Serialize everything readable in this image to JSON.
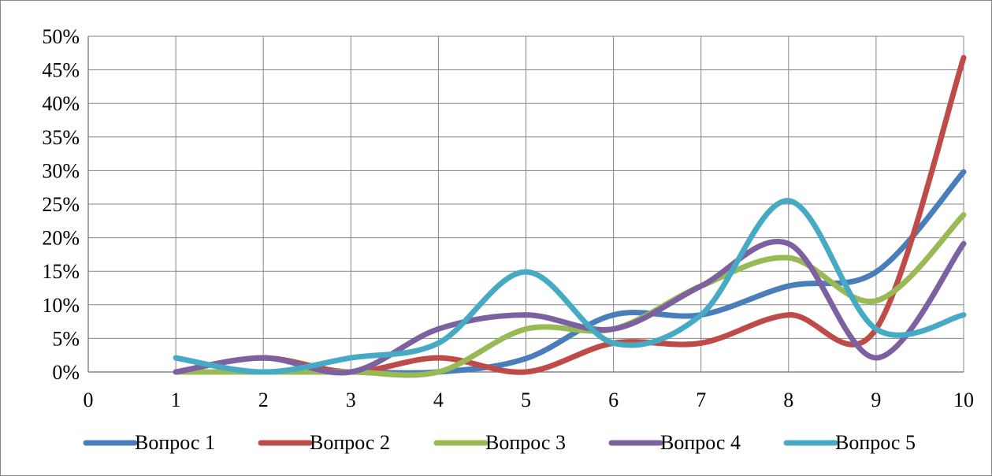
{
  "chart_data": {
    "type": "line",
    "smooth": true,
    "x_ticks": [
      "0",
      "1",
      "2",
      "3",
      "4",
      "5",
      "6",
      "7",
      "8",
      "9",
      "10"
    ],
    "y_ticks": [
      "0%",
      "5%",
      "10%",
      "15%",
      "20%",
      "25%",
      "30%",
      "35%",
      "40%",
      "45%",
      "50%"
    ],
    "xlim": [
      0,
      10
    ],
    "ylim": [
      0,
      50
    ],
    "y_unit": "%",
    "grid": true,
    "legend_position": "bottom",
    "x": [
      1,
      2,
      3,
      4,
      5,
      6,
      7,
      8,
      9,
      10
    ],
    "series": [
      {
        "name": "Вопрос 1",
        "color": "#4a7ebb",
        "values": [
          0,
          0,
          0,
          0,
          2,
          8.5,
          8.5,
          12.8,
          14.9,
          29.8
        ]
      },
      {
        "name": "Вопрос 2",
        "color": "#be4b48",
        "values": [
          0,
          2.1,
          0,
          2.1,
          0,
          4.3,
          4.3,
          8.5,
          6.4,
          46.8
        ]
      },
      {
        "name": "Вопрос 3",
        "color": "#98b954",
        "values": [
          0,
          0,
          0,
          0,
          6.4,
          6.4,
          12.8,
          17,
          10.6,
          23.4
        ]
      },
      {
        "name": "Вопрос 4",
        "color": "#7d60a0",
        "values": [
          0,
          2.1,
          0,
          6.4,
          8.5,
          6.4,
          12.8,
          19.1,
          2.1,
          19.1
        ]
      },
      {
        "name": "Вопрос 5",
        "color": "#46aac5",
        "values": [
          2.1,
          0,
          2.1,
          4.3,
          14.9,
          4.3,
          8.5,
          25.5,
          6.4,
          8.5
        ]
      }
    ]
  }
}
